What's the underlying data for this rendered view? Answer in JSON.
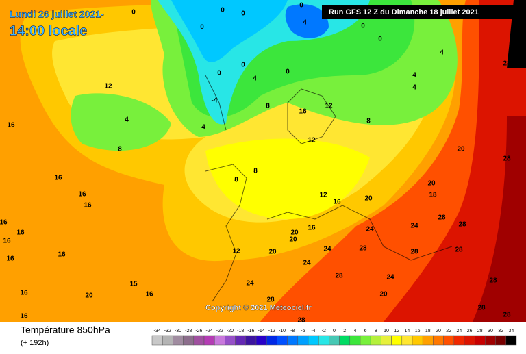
{
  "header": {
    "date": "Lundi 26 juillet 2021-",
    "time": "14:00 locale",
    "run": "Run GFS 12 Z du Dimanche 18 juillet 2021"
  },
  "copyright": "Copyright © 2021 Meteociel.fr",
  "legend": {
    "title": "Température 850hPa",
    "lead": "(+ 192h)"
  },
  "scale": {
    "ticks": [
      -34,
      -32,
      -30,
      -28,
      -26,
      -24,
      -22,
      -20,
      -18,
      -16,
      -14,
      -12,
      -10,
      -8,
      -6,
      -4,
      -2,
      0,
      2,
      4,
      6,
      8,
      10,
      12,
      14,
      16,
      18,
      20,
      22,
      24,
      26,
      28,
      30,
      32,
      34
    ],
    "colors": [
      "#c8c8c8",
      "#b4b4b4",
      "#a08ca0",
      "#8c6e8c",
      "#a050a0",
      "#b43cb4",
      "#c878dc",
      "#9650c8",
      "#6428b4",
      "#3c14a0",
      "#2800c8",
      "#0028e6",
      "#0050ff",
      "#0078ff",
      "#00a0ff",
      "#00c8ff",
      "#28e6e6",
      "#46c8b4",
      "#00dc64",
      "#3ce63c",
      "#78f03c",
      "#b4f03c",
      "#e6f03c",
      "#ffff00",
      "#ffe632",
      "#ffc800",
      "#ffa000",
      "#ff7800",
      "#ff5000",
      "#f02800",
      "#dc1400",
      "#c80000",
      "#a00000",
      "#780000",
      "#000000"
    ]
  },
  "contour_labels": [
    16,
    16,
    16,
    16,
    16,
    16,
    16,
    16,
    16,
    16,
    16,
    20,
    15,
    16,
    12,
    4,
    8,
    8,
    8,
    8,
    4,
    4,
    16,
    12,
    12,
    12,
    16,
    20,
    24,
    24,
    28,
    28,
    28,
    28,
    28,
    24,
    24,
    24,
    28,
    24,
    20,
    20,
    12,
    20,
    16,
    20,
    20,
    18,
    20,
    28,
    28,
    28,
    28,
    28,
    28,
    28,
    8,
    4,
    4,
    4,
    0,
    4,
    0,
    0,
    0,
    -4,
    0,
    0,
    0,
    0,
    0,
    0
  ]
}
